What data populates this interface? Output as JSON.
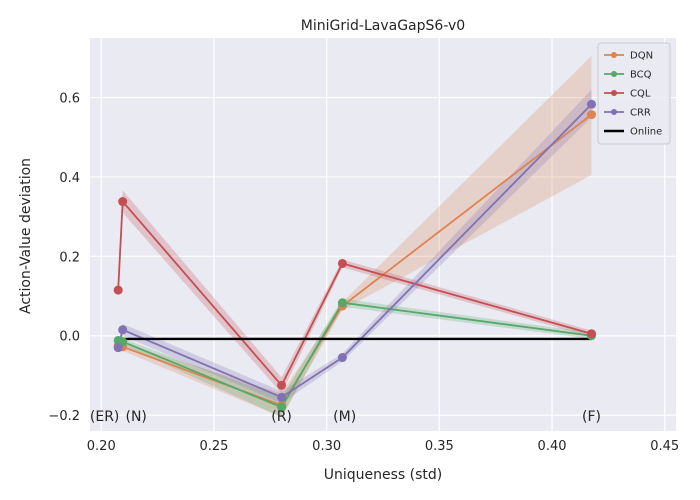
{
  "chart_data": {
    "type": "line",
    "title": "MiniGrid-LavaGapS6-v0",
    "xlabel": "Uniqueness (std)",
    "ylabel": "Action-Value deviation",
    "xlim": [
      0.195,
      0.455
    ],
    "ylim": [
      -0.24,
      0.75
    ],
    "xticks": [
      0.2,
      0.25,
      0.3,
      0.35,
      0.4,
      0.45
    ],
    "xtick_labels": [
      "0.20",
      "0.25",
      "0.30",
      "0.35",
      "0.40",
      "0.45"
    ],
    "yticks": [
      -0.2,
      0.0,
      0.2,
      0.4,
      0.6
    ],
    "ytick_labels": [
      "−0.2",
      "0.0",
      "0.2",
      "0.4",
      "0.6"
    ],
    "grid": true,
    "legend_position": "top-right",
    "series": [
      {
        "name": "DQN",
        "color": "#dd8452",
        "x": [
          0.2075,
          0.2095,
          0.28,
          0.307,
          0.4175
        ],
        "y": [
          -0.025,
          -0.028,
          -0.175,
          0.075,
          0.557
        ],
        "lower": [
          -0.035,
          -0.038,
          -0.205,
          0.065,
          0.405
        ],
        "upper": [
          -0.015,
          -0.018,
          -0.145,
          0.085,
          0.705
        ]
      },
      {
        "name": "BCQ",
        "color": "#55a868",
        "x": [
          0.2075,
          0.2095,
          0.28,
          0.307,
          0.4175
        ],
        "y": [
          -0.012,
          -0.015,
          -0.18,
          0.083,
          0.0
        ],
        "lower": [
          -0.02,
          -0.023,
          -0.205,
          0.073,
          -0.008
        ],
        "upper": [
          -0.004,
          -0.007,
          -0.155,
          0.093,
          0.008
        ]
      },
      {
        "name": "CQL",
        "color": "#c44e52",
        "x": [
          0.2075,
          0.2095,
          0.28,
          0.307,
          0.4175
        ],
        "y": [
          0.115,
          0.338,
          -0.125,
          0.182,
          0.005
        ],
        "lower": [
          0.11,
          0.31,
          -0.145,
          0.172,
          -0.003
        ],
        "upper": [
          0.12,
          0.366,
          -0.105,
          0.192,
          0.013
        ]
      },
      {
        "name": "CRR",
        "color": "#8172b3",
        "x": [
          0.2075,
          0.2095,
          0.28,
          0.307,
          0.4175
        ],
        "y": [
          -0.03,
          0.015,
          -0.155,
          -0.055,
          0.583
        ],
        "lower": [
          -0.04,
          0.0,
          -0.17,
          -0.065,
          0.55
        ],
        "upper": [
          -0.02,
          0.03,
          -0.14,
          -0.045,
          0.62
        ]
      },
      {
        "name": "Online",
        "color": "#000000",
        "x": [
          0.2075,
          0.4175
        ],
        "y": [
          -0.008,
          -0.008
        ]
      }
    ],
    "annotations": [
      {
        "text": "(ER)",
        "x": 0.2015,
        "y": -0.215
      },
      {
        "text": "(N)",
        "x": 0.2155,
        "y": -0.215
      },
      {
        "text": "(R)",
        "x": 0.28,
        "y": -0.215
      },
      {
        "text": "(M)",
        "x": 0.308,
        "y": -0.215
      },
      {
        "text": "(F)",
        "x": 0.4175,
        "y": -0.215
      }
    ]
  }
}
